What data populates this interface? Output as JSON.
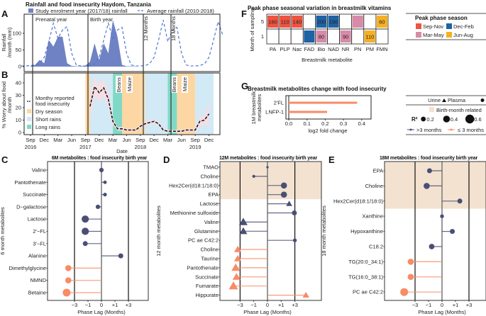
{
  "panel_letters": [
    "A",
    "B",
    "C",
    "D",
    "E",
    "F",
    "G"
  ],
  "colors": {
    "rain": "#6f82c4",
    "avg": "#4f77d6",
    "dry": "#fcd7a3",
    "short": "#d2e9f6",
    "long": "#7fd9c6",
    "ci": "#f8dde2",
    "gt3": "#4a4f75",
    "le3": "#f98b65",
    "birth": "#f3e2d0",
    "sepnov": "#ee5440",
    "decfeb": "#1f63a5",
    "marmay": "#d78ba8",
    "junaug": "#f7b022"
  },
  "chart_data": [
    {
      "id": "A",
      "type": "area",
      "title": "Rainfall and food insecurity Haydom, Tanzania",
      "ylabel": "Rainfall /month (mm)",
      "yticks": [
        0,
        50,
        100
      ],
      "period_labels": [
        "Prenatal year",
        "Birth year",
        "12 Months",
        "18 Months"
      ],
      "series": [
        {
          "name": "Study enrolment year (2017/18) rainfall",
          "start": "2016-09",
          "values": [
            2,
            5,
            20,
            10,
            80,
            60,
            90,
            90,
            10,
            2,
            1,
            1,
            3,
            15,
            70,
            20,
            70,
            40,
            140,
            90,
            5,
            1,
            1,
            1
          ]
        },
        {
          "name": "Average rainfall (2010-2018)",
          "start": "2016-07",
          "values": [
            2,
            2,
            3,
            5,
            10,
            28,
            75,
            130,
            85,
            110,
            120,
            40,
            5,
            2,
            2,
            3,
            8,
            28,
            80,
            130,
            85,
            110,
            118,
            40,
            5,
            2,
            2,
            3,
            8,
            28,
            80,
            140,
            75,
            110,
            118,
            40,
            5,
            2,
            2,
            3,
            8,
            28,
            80,
            135,
            95
          ]
        }
      ]
    },
    {
      "id": "B",
      "type": "line",
      "xlabel": "Date",
      "ylabel": "% Worry about food /month",
      "yticks": [
        0,
        10,
        20,
        30,
        40
      ],
      "xticks": [
        "Sep",
        "Dec",
        "Mar",
        "Jun",
        "Sep",
        "Dec",
        "Mar",
        "Jun",
        "Sep",
        "Dec",
        "Mar",
        "Jun",
        "Sep",
        "Dec"
      ],
      "year_labels": [
        "2016",
        "2017",
        "2018",
        "2019"
      ],
      "legend": [
        "Monthy reported food insecurity",
        "Dry season",
        "Short rains",
        "Long rains"
      ],
      "harvest_labels": [
        "Beans",
        "Maize",
        "Beans",
        "Maize"
      ],
      "seasons": [
        [
          "2017-09",
          "2017-10",
          "dry"
        ],
        [
          "2017-10",
          "2018-03",
          "short"
        ],
        [
          "2018-03",
          "2018-05",
          "long"
        ],
        [
          "2018-05",
          "2018-09",
          "dry"
        ],
        [
          "2018-09",
          "2018-10",
          "dry"
        ],
        [
          "2018-10",
          "2019-03",
          "short"
        ],
        [
          "2019-03",
          "2019-05",
          "long"
        ],
        [
          "2019-05",
          "2019-09",
          "dry"
        ],
        [
          "2019-09",
          "2020-01",
          "short"
        ]
      ],
      "start": "2017-10",
      "values": [
        21,
        37,
        32,
        36,
        27,
        9,
        3,
        3,
        2,
        2,
        2,
        5,
        7,
        8,
        9,
        7,
        2,
        1,
        1,
        1,
        1,
        2,
        2,
        2,
        9,
        10,
        15
      ],
      "ci_halfwidth": [
        10,
        8,
        7,
        7,
        6,
        3,
        1.5,
        1.5,
        1.2,
        1.2,
        1.2,
        1.5,
        1.5,
        1.5,
        1.5,
        1.5,
        1.2,
        1.2,
        1.2,
        1.2,
        1.2,
        1.2,
        1.2,
        1.2,
        4,
        4,
        9
      ]
    },
    {
      "id": "F",
      "type": "heatmap",
      "title": "Peak phase seasonal variation in breastmilk vitamins",
      "xlabel": "Breastmilk metabolite",
      "ylabel": "Month of sampling",
      "categories": [
        "PA",
        "PLP",
        "Nac",
        "FAD",
        "Bio",
        "NAD",
        "NR",
        "PN",
        "PM",
        "FMN"
      ],
      "rows": [
        "5",
        "1"
      ],
      "cells": [
        [
          "sepnov",
          "160"
        ],
        [
          "sepnov",
          "110"
        ],
        [
          "sepnov",
          "140"
        ],
        null,
        [
          "decfeb",
          "200"
        ],
        [
          "decfeb",
          "190"
        ],
        null,
        [
          "marmay",
          ""
        ],
        null,
        [
          "junaug",
          "60"
        ],
        null,
        null,
        null,
        [
          "decfeb",
          ""
        ],
        [
          "marmay",
          "80"
        ],
        null,
        [
          "marmay",
          "90"
        ],
        null,
        [
          "junaug",
          "110"
        ],
        null
      ],
      "legend_title": "Peak phase season",
      "legend": [
        [
          "sepnov",
          "Sep-Nov"
        ],
        [
          "decfeb",
          "Dec-Feb"
        ],
        [
          "marmay",
          "Mar-May"
        ],
        [
          "junaug",
          "Jun-Aug"
        ]
      ]
    },
    {
      "id": "G",
      "type": "bar",
      "title": "Breastmilk metabolites change with food insecurity",
      "xlabel": "log2 fold change",
      "ylabel": "1M breastmilk metabolites",
      "categories": [
        "2'FL",
        "LNFP-1"
      ],
      "values": [
        0.375,
        0.21
      ],
      "xticks": [
        "0.0",
        "0.1",
        "0.2",
        "0.3",
        "0.4"
      ],
      "xlim": [
        -0.02,
        0.45
      ]
    },
    {
      "id": "C",
      "type": "scatter",
      "title": "6M metabolites : food insecurity birth year",
      "ylabel": "6 month metabolites",
      "xlabel": "Phase Lag (Months)",
      "xticks": [
        "-3",
        "-1",
        "0",
        "+1",
        "+3"
      ],
      "birth_month_rows": 0,
      "points": [
        [
          "Valine",
          0,
          0.2,
          "circle",
          "gt3"
        ],
        [
          "Pantothenate",
          0.2,
          0.12,
          "circle",
          "gt3"
        ],
        [
          "Succinate",
          0.2,
          0.14,
          "circle",
          "gt3"
        ],
        [
          "D−galactose",
          -0.2,
          0.2,
          "circle",
          "gt3"
        ],
        [
          "Lactose",
          -1.3,
          0.45,
          "circle",
          "gt3"
        ],
        [
          "2'−FL",
          -1.3,
          0.45,
          "circle",
          "gt3"
        ],
        [
          "3'−FL",
          -1.3,
          0.25,
          "circle",
          "gt3"
        ],
        [
          "Alanine",
          1.7,
          0.25,
          "circle",
          "gt3"
        ],
        [
          "Dimethylglycine",
          -4.5,
          0.35,
          "circle",
          "le3"
        ],
        [
          "NMND",
          -4.5,
          0.35,
          "circle",
          "le3"
        ],
        [
          "Betaine",
          -5,
          0.5,
          "circle",
          "le3"
        ]
      ]
    },
    {
      "id": "D",
      "type": "scatter",
      "title": "12M metabolites : food insecurity birth year",
      "ylabel": "12 month metabolites",
      "xlabel": "Phase Lag (Months)",
      "xticks": [
        "-3",
        "-1",
        "0",
        "+1",
        "+3"
      ],
      "birth_month_rows": 4,
      "points": [
        [
          "TMAO",
          0,
          0.02,
          "circle",
          "gt3"
        ],
        [
          "Choline",
          -1,
          0.08,
          "circle",
          "gt3"
        ],
        [
          "Hex2Cer(d18:1/18:0)",
          1.3,
          0.35,
          "circle",
          "gt3"
        ],
        [
          "EPA",
          1.3,
          0.35,
          "circle",
          "gt3"
        ],
        [
          "Lactose",
          2,
          0.3,
          "triangle",
          "gt3"
        ],
        [
          "Methionine sulfoxide",
          2.9,
          0.25,
          "circle",
          "gt3"
        ],
        [
          "Valine",
          -2.4,
          0.5,
          "triangle",
          "gt3"
        ],
        [
          "Glutamine",
          -2.4,
          0.45,
          "triangle",
          "gt3"
        ],
        [
          "PC ae C42:2",
          3,
          0.15,
          "circle",
          "gt3"
        ],
        [
          "Choline",
          -3.5,
          0.4,
          "triangle",
          "le3"
        ],
        [
          "Taurine",
          -3.5,
          0.4,
          "triangle",
          "le3"
        ],
        [
          "Pantothenate",
          -4,
          0.5,
          "triangle",
          "le3"
        ],
        [
          "Succinate",
          -3.8,
          0.45,
          "triangle",
          "le3"
        ],
        [
          "Fumarate",
          -4.6,
          0.55,
          "triangle",
          "le3"
        ],
        [
          "Hippurate",
          6,
          0.35,
          "triangle",
          "le3"
        ]
      ]
    },
    {
      "id": "E",
      "type": "scatter",
      "title": "18M metabolites : food insecurity birth year",
      "ylabel": "18 month metabolites",
      "xlabel": "Phase Lag (Months)",
      "xticks": [
        "-3",
        "-1",
        "0",
        "+1",
        "+3"
      ],
      "birth_month_rows": 3,
      "points": [
        [
          "EPA",
          -0.9,
          0.25,
          "circle",
          "gt3"
        ],
        [
          "Choline",
          -1.2,
          0.35,
          "circle",
          "gt3"
        ],
        [
          "Hex2Cer(d18:1/18:0)",
          1.5,
          0.25,
          "circle",
          "gt3"
        ],
        [
          "Xanthine",
          0,
          0.15,
          "circle",
          "gt3"
        ],
        [
          "Hypoxanthine",
          0.7,
          0.25,
          "circle",
          "gt3"
        ],
        [
          "C18.2",
          -0.7,
          0.3,
          "circle",
          "gt3"
        ],
        [
          "TG(20:0_34:1)",
          -4,
          0.35,
          "circle",
          "le3"
        ],
        [
          "TG(16:0_38:1)",
          -4,
          0.35,
          "circle",
          "le3"
        ],
        [
          "PC ae C42:2",
          -6,
          0.5,
          "circle",
          "le3"
        ]
      ]
    }
  ],
  "shared_legend": {
    "shape_labels": [
      "Urine",
      "Plasma"
    ],
    "birth_month": "Birth-month related",
    "r2_label": "R²",
    "r2_values": [
      "0.2",
      "0.4",
      "0.6"
    ],
    "lag_labels": [
      ">3 months",
      "≤ 3 months"
    ]
  }
}
